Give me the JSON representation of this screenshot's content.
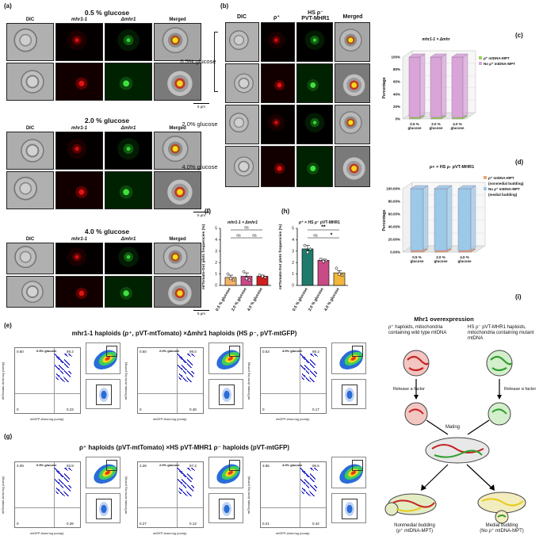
{
  "panels": {
    "a": {
      "label": "(a)",
      "columns": [
        "DIC",
        "mhr1-1",
        "Δmhr1",
        "Merged"
      ],
      "conditions": [
        "0.5 % glucose",
        "2.0 % glucose",
        "4.0 % glucose"
      ],
      "scale_bar": "5 μm"
    },
    "b": {
      "label": "(b)",
      "columns": [
        "DIC",
        "ρ⁺",
        "HS ρ⁻",
        "PVT-MHR1",
        "Merged"
      ],
      "conditions": [
        "0.5% glucose",
        "2.0% glucose",
        "4.0% glucose"
      ]
    },
    "c": {
      "label": "(c)",
      "title": "mhr1-1 × Δmhr",
      "legend": [
        "ρ⁺ mtDNA-MPT",
        "No ρ⁺ mtDNA-MPT"
      ]
    },
    "d": {
      "label": "(d)",
      "title": "ρ+ × HS ρ- pVT-MHR1",
      "legend": [
        "ρ⁺ mtDNA-MPT",
        "(nonmedial budding)",
        "No ρ⁺ mtDNA-MPT",
        "(medial budding)"
      ]
    },
    "e": {
      "label": "(e)",
      "title": "mhr1-1 haploids (ρ⁺, pVT-mtTomato) ×Δmhr1 haploids  (HS ρ⁻, pVT-mtGFP)",
      "plots": [
        {
          "name": "0.5% glucose",
          "q": [
            "0.60",
            "99.2",
            "0",
            "0.23"
          ]
        },
        {
          "name": "2.0% glucose",
          "q": [
            "0.60",
            "99.0",
            "0",
            "0.48"
          ]
        },
        {
          "name": "4.0% glucose",
          "q": [
            "0.53",
            "99.3",
            "0",
            "0.17"
          ]
        }
      ],
      "x_axis": "mtGFP-Area log (comp)",
      "y_axis": "mtTomato-Area log (comp)"
    },
    "f": {
      "label": "(f)",
      "title": "mhr1-1 × Δmhr1",
      "comparisons": [
        "ns",
        "ns",
        "ns"
      ]
    },
    "g": {
      "label": "(g)",
      "title": "ρ⁺ haploids (pVT-mtTomato) ×HS pVT-MHR1 ρ⁻ haploids (pVT-mtGFP)",
      "plots": [
        {
          "name": "0.5% glucose",
          "q": [
            "4.09",
            "93.8",
            "0",
            "0.39"
          ]
        },
        {
          "name": "2.0% glucose",
          "q": [
            "2.28",
            "97.3",
            "0.27",
            "0.13"
          ]
        },
        {
          "name": "4.0% glucose",
          "q": [
            "3.85",
            "95.5",
            "0.21",
            "0.42"
          ]
        }
      ],
      "x_axis": "mtGFP-Area log (comp)",
      "y_axis": "mtTomato-Area log (comp)"
    },
    "h": {
      "label": "(h)",
      "title": "ρ⁺ × HS ρ⁻ pVT-MHR1",
      "comparisons": [
        "**",
        "ns",
        "*"
      ]
    },
    "i": {
      "label": "(i)",
      "title": "Mhr1 overexpression",
      "left_desc": "ρ⁺ haploids, mitochondria containing wild type mtDNA",
      "right_desc": "HS ρ⁻ pVT-MHR1 haploids, mitochondria containing mutant mtDNA",
      "release_left": "Release a factor",
      "release_right": "Release α factor",
      "mating": "Mating",
      "outcome_left": [
        "Nonmedial budding",
        "(ρ⁺ mtDNA-MPT)"
      ],
      "outcome_right": [
        "Medial budding",
        "(No ρ⁺ mtDNA-MPT)"
      ]
    }
  },
  "chart_data": [
    {
      "type": "bar",
      "panel": "c",
      "title": "mhr1-1 × Δmhr",
      "categories": [
        "0.5 % glucose",
        "2.0 % glucose",
        "4.0 % glucose"
      ],
      "series": [
        {
          "name": "ρ⁺ mtDNA-MPT",
          "values": [
            0,
            0,
            0
          ]
        },
        {
          "name": "No ρ⁺ mtDNA-MPT",
          "values": [
            100,
            100,
            100
          ]
        }
      ],
      "ylabel": "Percentage",
      "yticks": [
        "0%",
        "20%",
        "40%",
        "60%",
        "80%",
        "100%"
      ],
      "ylim": [
        0,
        100
      ],
      "colors": [
        "#9ccf5e",
        "#d9a5d9"
      ]
    },
    {
      "type": "bar",
      "panel": "d",
      "title": "ρ+ × HS ρ- pVT-MHR1",
      "categories": [
        "0.5 % glucose",
        "2.0 % glucose",
        "4.0 % glucose"
      ],
      "series": [
        {
          "name": "ρ⁺ mtDNA-MPT (nonmedial budding)",
          "values": [
            0,
            0,
            0
          ]
        },
        {
          "name": "No ρ⁺ mtDNA-MPT (medial budding)",
          "values": [
            100,
            100,
            100
          ]
        }
      ],
      "ylabel": "Percentage",
      "yticks": [
        "0.00%",
        "20.00%",
        "40.00%",
        "60.00%",
        "80.00%",
        "100.00%"
      ],
      "ylim": [
        0,
        100
      ],
      "colors": [
        "#f0a27a",
        "#9cc9e8"
      ]
    },
    {
      "type": "bar",
      "panel": "f",
      "title": "mhr1-1 × Δmhr1",
      "categories": [
        "0.5 % glucose",
        "2.0 % glucose",
        "4.0 % glucose"
      ],
      "values": [
        0.7,
        0.8,
        0.8
      ],
      "errors": [
        0.2,
        0.3,
        0.1
      ],
      "points": [
        [
          1.0,
          0.6,
          0.5
        ],
        [
          1.2,
          0.6,
          0.5
        ],
        [
          0.9,
          0.8,
          0.7
        ]
      ],
      "ylabel": "mtTomato-Dot plots frequencies (%)",
      "yticks": [
        0,
        1,
        2,
        3,
        4,
        5
      ],
      "ylim": [
        0,
        5
      ],
      "colors": [
        "#f2b266",
        "#c84a86",
        "#cf2020"
      ]
    },
    {
      "type": "bar",
      "panel": "h",
      "title": "ρ⁺ × HS ρ⁻ pVT-MHR1",
      "categories": [
        "0.5 % glucose",
        "2.0 % glucose",
        "4.0 % glucose"
      ],
      "values": [
        3.2,
        2.2,
        1.1
      ],
      "errors": [
        0.3,
        0.1,
        0.2
      ],
      "points": [
        [
          3.5,
          2.9,
          3.2
        ],
        [
          2.3,
          2.1,
          2.2
        ],
        [
          1.5,
          1.0,
          0.9
        ]
      ],
      "ylabel": "mtTomato-Dot plots frequencies (%)",
      "yticks": [
        0,
        1,
        2,
        3,
        4,
        5
      ],
      "ylim": [
        0,
        5
      ],
      "colors": [
        "#1f7a6b",
        "#c84a86",
        "#f2b63a"
      ]
    }
  ]
}
